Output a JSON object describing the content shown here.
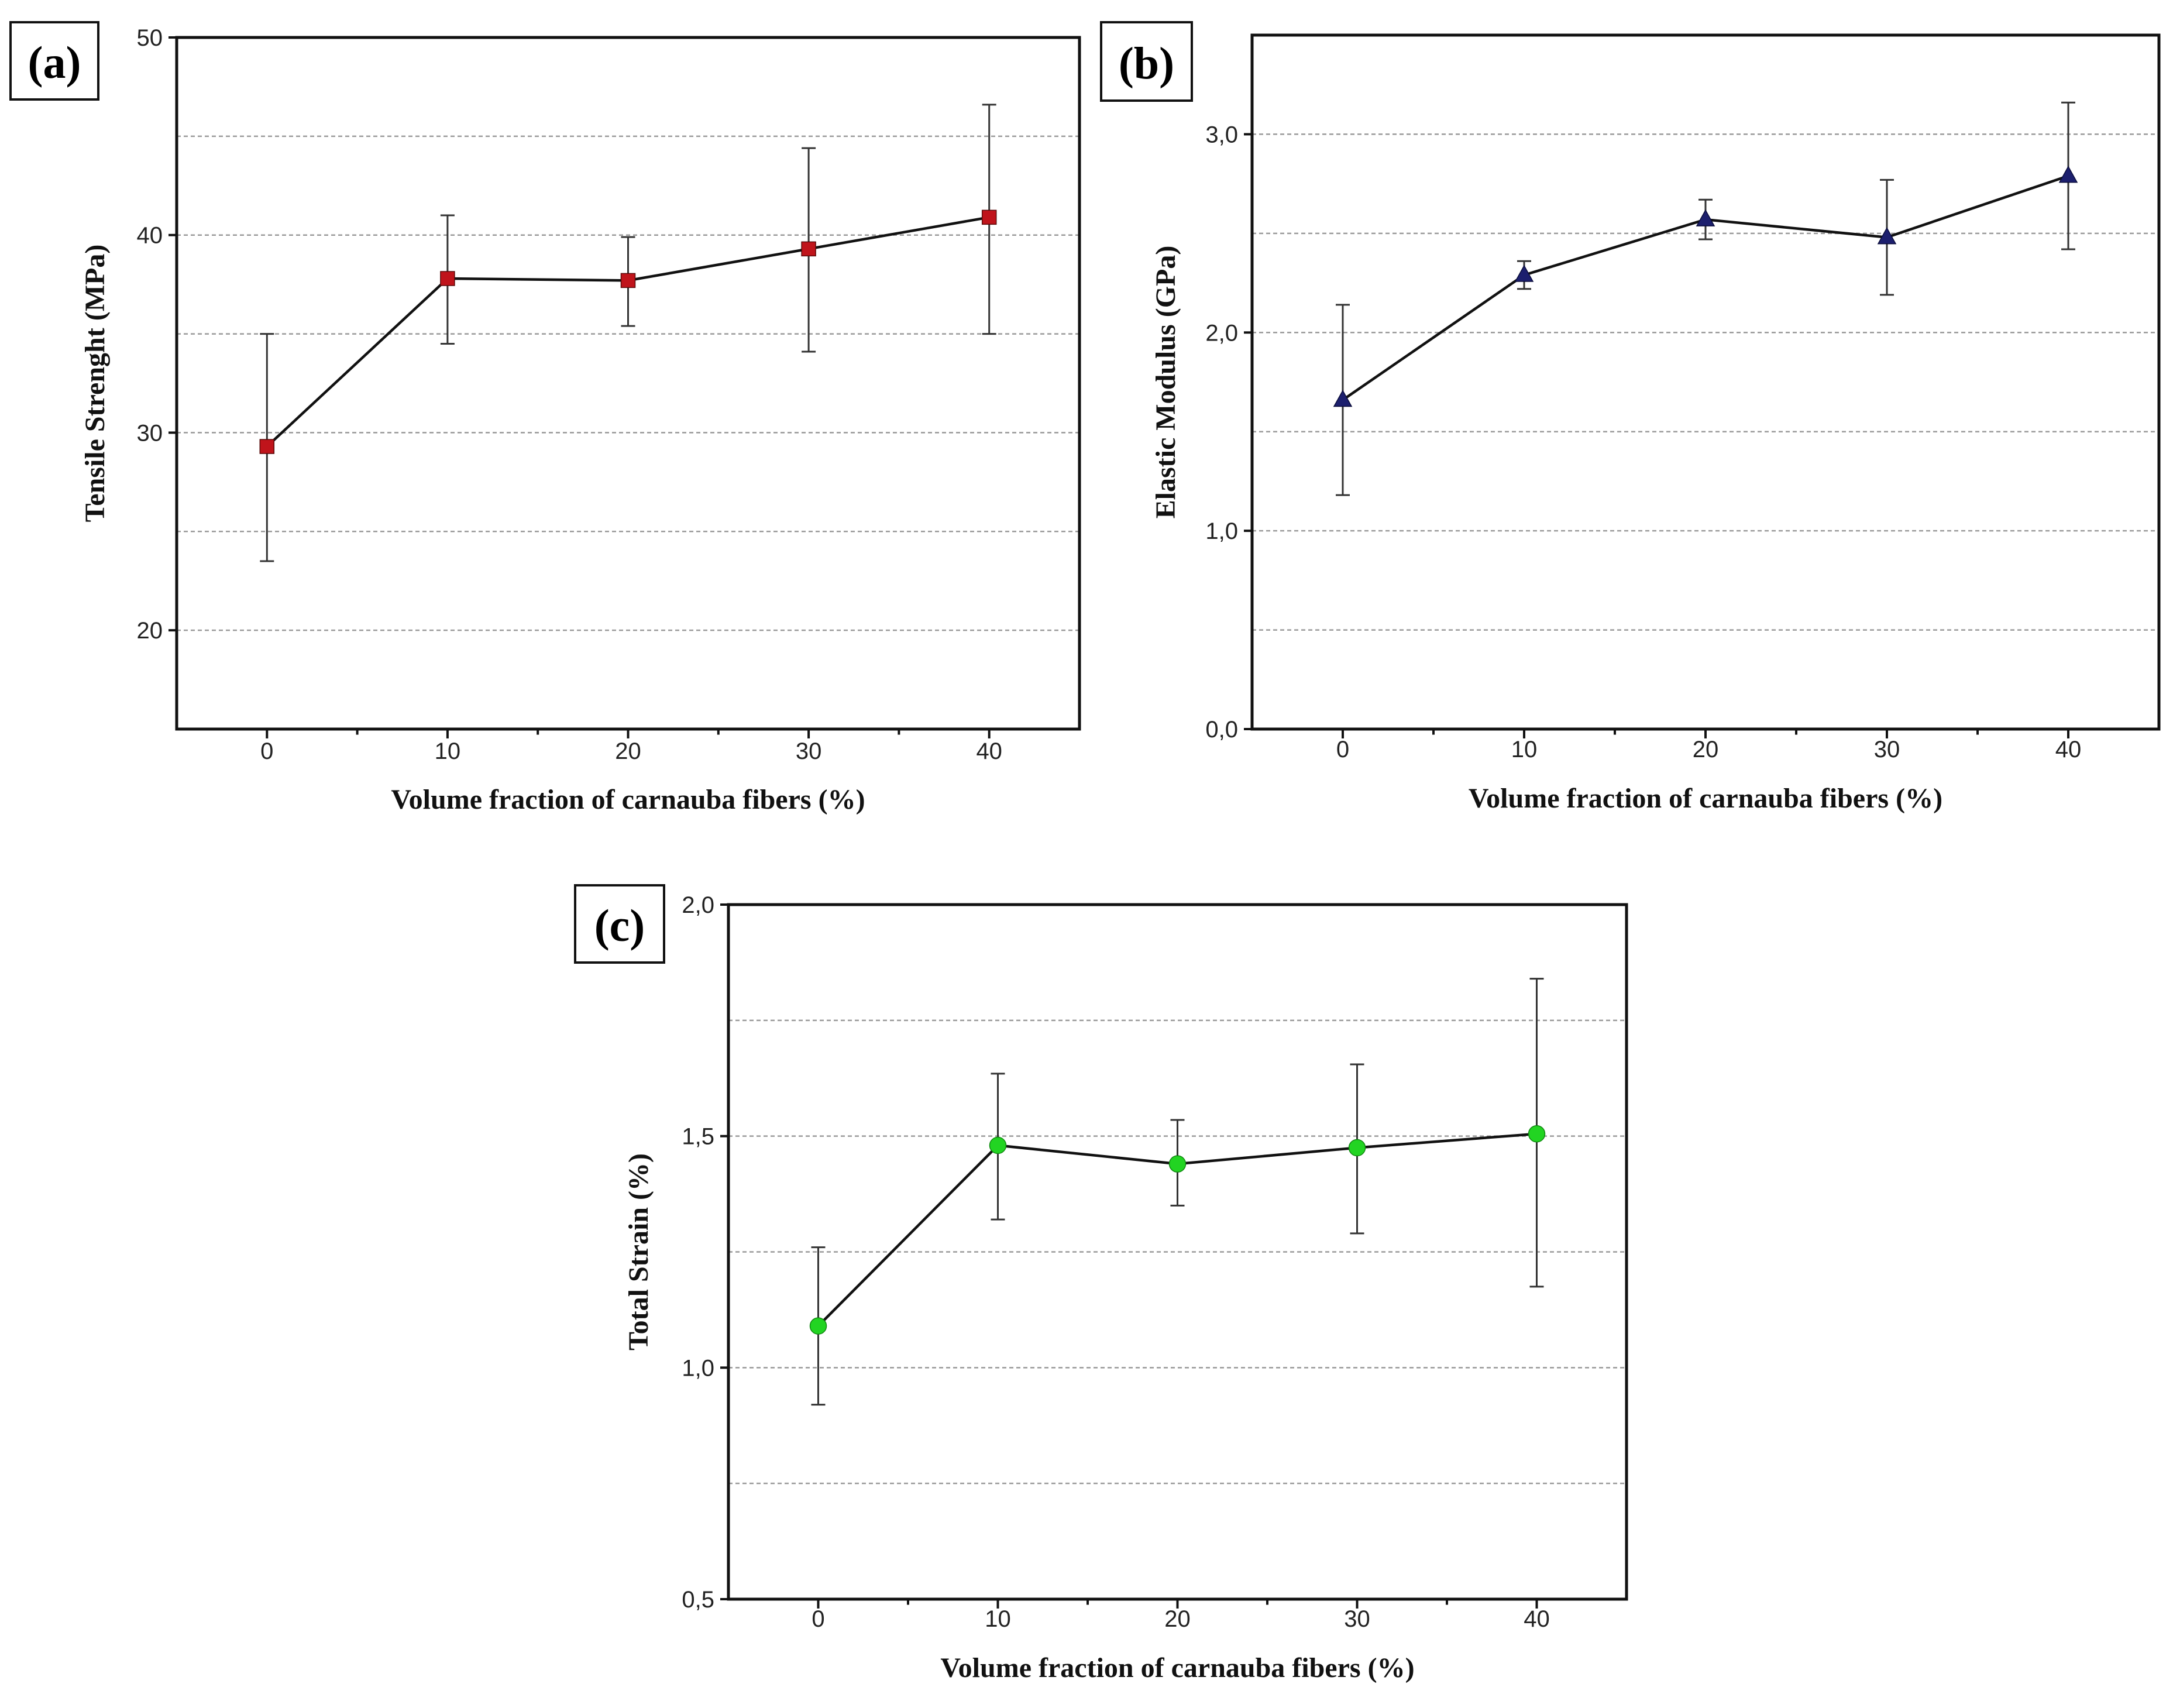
{
  "chart_data": [
    {
      "id": "a",
      "type": "line",
      "panel_label": "(a)",
      "xlabel": "Volume fraction of carnauba fibers (%)",
      "ylabel": "Tensile Strenght (MPa)",
      "x": [
        0,
        10,
        20,
        30,
        40
      ],
      "x_tick_labels": [
        "0",
        "10",
        "20",
        "30",
        "40"
      ],
      "xlim": [
        -5,
        45
      ],
      "ylim": [
        15,
        50
      ],
      "y_ticks": [
        20,
        30,
        40,
        50
      ],
      "y_tick_labels": [
        "20",
        "30",
        "40",
        "50"
      ],
      "y_gridlines": [
        20,
        25,
        30,
        35,
        40,
        45
      ],
      "series": [
        {
          "name": "Tensile strength",
          "marker": "square",
          "color": "#c0141b",
          "values": [
            29.3,
            37.8,
            37.7,
            39.3,
            40.9
          ],
          "error_low": [
            23.5,
            34.5,
            35.4,
            34.1,
            35.0
          ],
          "error_high": [
            35.0,
            41.0,
            39.9,
            44.4,
            46.6
          ]
        }
      ]
    },
    {
      "id": "b",
      "type": "line",
      "panel_label": "(b)",
      "xlabel": "Volume fraction of carnauba fibers (%)",
      "ylabel": "Elastic Modulus (GPa)",
      "x": [
        0,
        10,
        20,
        30,
        40
      ],
      "x_tick_labels": [
        "0",
        "10",
        "20",
        "30",
        "40"
      ],
      "xlim": [
        -5,
        45
      ],
      "ylim": [
        0,
        3.5
      ],
      "y_ticks": [
        0,
        1,
        2,
        3
      ],
      "y_tick_labels": [
        "0,0",
        "1,0",
        "2,0",
        "3,0"
      ],
      "y_gridlines": [
        0.5,
        1.0,
        1.5,
        2.0,
        2.5,
        3.0
      ],
      "series": [
        {
          "name": "Elastic modulus",
          "marker": "triangle",
          "color": "#1c1f6e",
          "values": [
            1.66,
            2.29,
            2.57,
            2.48,
            2.79
          ],
          "error_low": [
            1.18,
            2.22,
            2.47,
            2.19,
            2.42
          ],
          "error_high": [
            2.14,
            2.36,
            2.67,
            2.77,
            3.16
          ]
        }
      ]
    },
    {
      "id": "c",
      "type": "line",
      "panel_label": "(c)",
      "xlabel": "Volume fraction of carnauba fibers (%)",
      "ylabel": "Total Strain (%)",
      "x": [
        0,
        10,
        20,
        30,
        40
      ],
      "x_tick_labels": [
        "0",
        "10",
        "20",
        "30",
        "40"
      ],
      "xlim": [
        -5,
        45
      ],
      "ylim": [
        0.5,
        2.0
      ],
      "y_ticks": [
        0.5,
        1.0,
        1.5,
        2.0
      ],
      "y_tick_labels": [
        "0,5",
        "1,0",
        "1,5",
        "2,0"
      ],
      "y_gridlines": [
        0.75,
        1.0,
        1.25,
        1.5,
        1.75
      ],
      "series": [
        {
          "name": "Total strain",
          "marker": "circle",
          "color": "#22d422",
          "values": [
            1.09,
            1.48,
            1.44,
            1.475,
            1.505
          ],
          "error_low": [
            0.92,
            1.32,
            1.35,
            1.29,
            1.175
          ],
          "error_high": [
            1.26,
            1.635,
            1.535,
            1.655,
            1.84
          ]
        }
      ]
    }
  ]
}
